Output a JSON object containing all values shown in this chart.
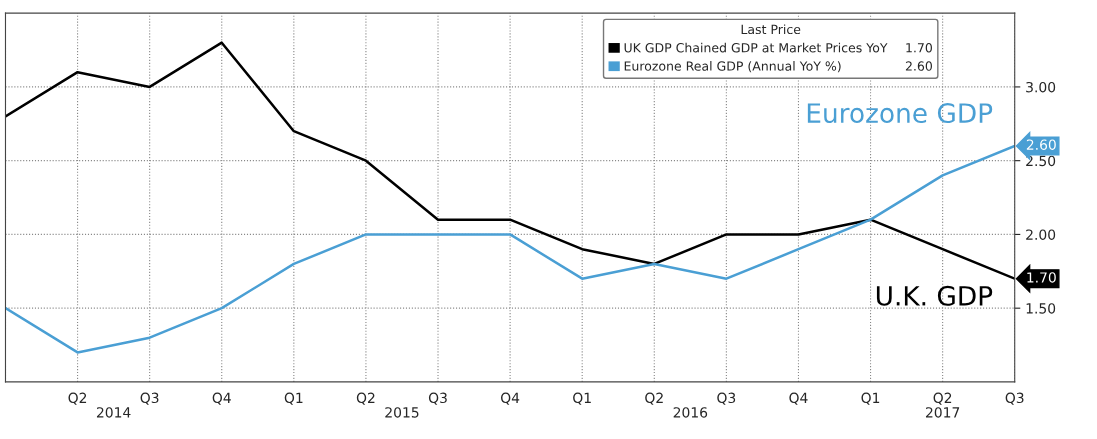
{
  "chart_data": {
    "type": "line",
    "categories": [
      null,
      "Q2",
      "Q3",
      "Q4",
      "Q1",
      "Q2",
      "Q3",
      "Q4",
      "Q1",
      "Q2",
      "Q3",
      "Q4",
      "Q1",
      "Q2",
      "Q3"
    ],
    "series": [
      {
        "name": "UK GDP Chained GDP at Market Prices YoY",
        "color": "#000000",
        "values": [
          2.8,
          3.1,
          3.0,
          3.3,
          2.7,
          2.5,
          2.1,
          2.1,
          1.9,
          1.8,
          2.0,
          2.0,
          2.1,
          1.9,
          1.7
        ],
        "value_labels": [
          null,
          null,
          null,
          null,
          null,
          null,
          null,
          null,
          null,
          null,
          null,
          null,
          null,
          null,
          "1.70"
        ]
      },
      {
        "name": "Eurozone Real GDP (Annual YoY %)",
        "color": "#4a9fd4",
        "values": [
          1.5,
          1.2,
          1.3,
          1.5,
          1.8,
          2.0,
          2.0,
          2.0,
          1.7,
          1.8,
          1.7,
          1.9,
          2.1,
          2.4,
          2.6
        ],
        "value_labels": [
          null,
          null,
          null,
          null,
          null,
          null,
          null,
          null,
          null,
          null,
          null,
          null,
          null,
          null,
          "2.60"
        ]
      }
    ],
    "ylim": [
      1.0,
      3.5
    ],
    "yticks": [
      {
        "value": 1.5,
        "label": "1.50"
      },
      {
        "value": 2.0,
        "label": "2.00"
      },
      {
        "value": 2.5,
        "label": "2.50"
      },
      {
        "value": 3.0,
        "label": "3.00"
      }
    ],
    "legend_title": "Last Price",
    "legend": "top right",
    "grid": true,
    "line_style": "solid",
    "marker": "none",
    "annotations": [
      "2014",
      "2015",
      "2016",
      "2017",
      "U.K. GDP",
      "Eurozone GDP"
    ]
  }
}
